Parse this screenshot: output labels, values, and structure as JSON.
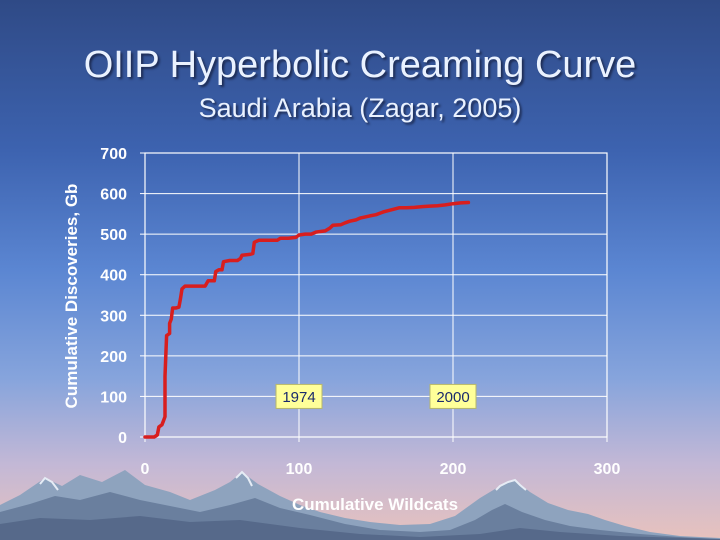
{
  "slide": {
    "title": "OIIP Hyperbolic Creaming Curve",
    "subtitle": "Saudi Arabia (Zagar, 2005)"
  },
  "chart_data": {
    "type": "line",
    "title": "OIIP Hyperbolic Creaming Curve",
    "subtitle": "Saudi Arabia (Zagar, 2005)",
    "xlabel": "Cumulative Wildcats",
    "ylabel": "Cumulative Discoveries, Gb",
    "xlim": [
      0,
      300
    ],
    "ylim": [
      0,
      700
    ],
    "xticks": [
      0,
      100,
      200,
      300
    ],
    "yticks": [
      0,
      100,
      200,
      300,
      400,
      500,
      600,
      700
    ],
    "grid": true,
    "series_color": "#d81e1e",
    "series": [
      {
        "points": [
          [
            0,
            0
          ],
          [
            6,
            0
          ],
          [
            8,
            5
          ],
          [
            9,
            25
          ],
          [
            11,
            30
          ],
          [
            12,
            40
          ],
          [
            13,
            50
          ],
          [
            13,
            150
          ],
          [
            14,
            250
          ],
          [
            16,
            255
          ],
          [
            16,
            280
          ],
          [
            17,
            290
          ],
          [
            18,
            318
          ],
          [
            20,
            318
          ],
          [
            22,
            320
          ],
          [
            23,
            340
          ],
          [
            24,
            365
          ],
          [
            26,
            372
          ],
          [
            28,
            372
          ],
          [
            35,
            372
          ],
          [
            39,
            372
          ],
          [
            41,
            385
          ],
          [
            45,
            385
          ],
          [
            46,
            408
          ],
          [
            48,
            412
          ],
          [
            50,
            412
          ],
          [
            51,
            432
          ],
          [
            55,
            435
          ],
          [
            60,
            435
          ],
          [
            62,
            440
          ],
          [
            63,
            448
          ],
          [
            68,
            450
          ],
          [
            70,
            452
          ],
          [
            71,
            480
          ],
          [
            74,
            485
          ],
          [
            80,
            485
          ],
          [
            86,
            485
          ],
          [
            88,
            490
          ],
          [
            93,
            490
          ],
          [
            98,
            492
          ],
          [
            100,
            498
          ],
          [
            104,
            500
          ],
          [
            108,
            500
          ],
          [
            111,
            505
          ],
          [
            117,
            508
          ],
          [
            120,
            515
          ],
          [
            122,
            522
          ],
          [
            127,
            523
          ],
          [
            130,
            528
          ],
          [
            133,
            532
          ],
          [
            137,
            535
          ],
          [
            140,
            540
          ],
          [
            146,
            545
          ],
          [
            150,
            548
          ],
          [
            155,
            555
          ],
          [
            160,
            560
          ],
          [
            165,
            565
          ],
          [
            170,
            565
          ],
          [
            175,
            566
          ],
          [
            180,
            568
          ],
          [
            185,
            569
          ],
          [
            190,
            570
          ],
          [
            195,
            572
          ],
          [
            200,
            575
          ],
          [
            205,
            577
          ],
          [
            210,
            578
          ]
        ]
      }
    ],
    "annotations": [
      {
        "text": "1974",
        "x": 100,
        "y": 100
      },
      {
        "text": "2000",
        "x": 200,
        "y": 100
      }
    ]
  }
}
